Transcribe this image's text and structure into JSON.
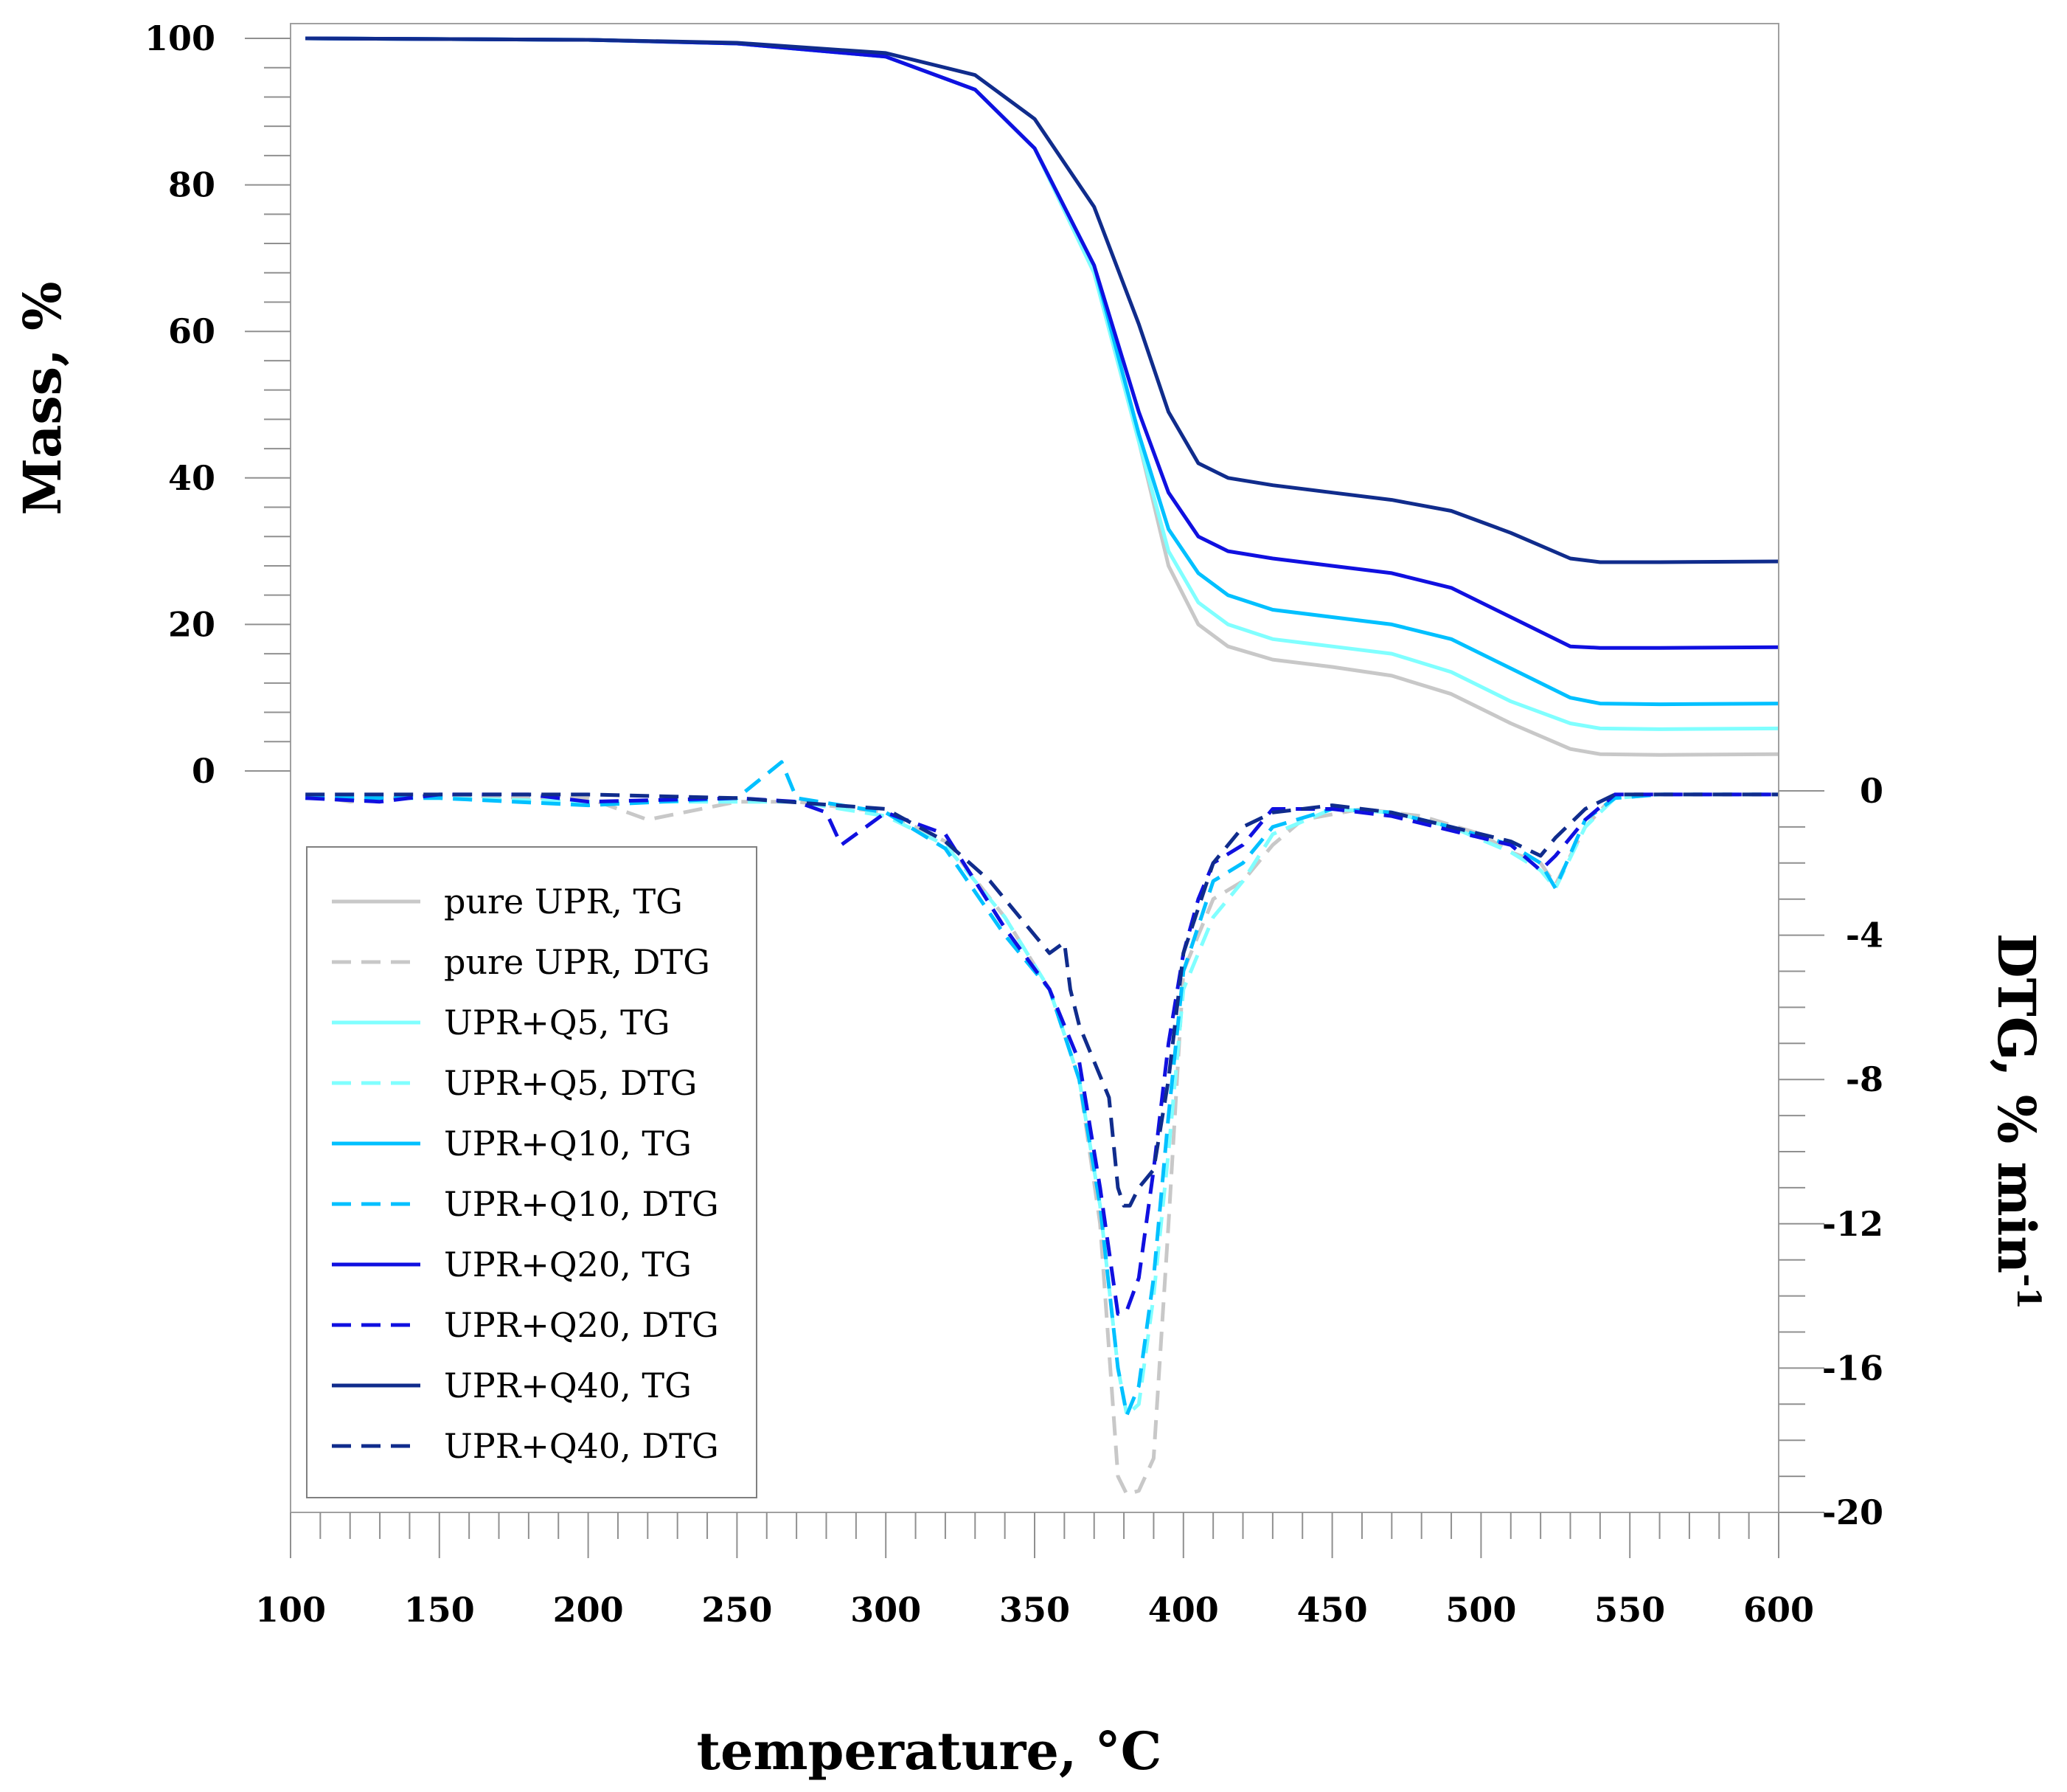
{
  "chart_data": {
    "type": "line",
    "title": "",
    "xlabel": "temperature, °C",
    "ylabel": "Mass, %",
    "y2label": "DTG, % min",
    "y2label_sup": "-1",
    "xlim": [
      100,
      600
    ],
    "ylim_left_visible": [
      0,
      100
    ],
    "ylim_right_visible": [
      -20,
      0
    ],
    "x_ticks": [
      100,
      150,
      200,
      250,
      300,
      350,
      400,
      450,
      500,
      550,
      600
    ],
    "y_ticks": [
      0,
      20,
      40,
      60,
      80,
      100
    ],
    "y2_ticks": [
      0,
      -4,
      -8,
      -12,
      -16,
      -20
    ],
    "legend_position": "lower-left",
    "series": [
      {
        "name": "pure UPR, TG",
        "axis": "left",
        "style": "solid",
        "color": "#c8c8c8",
        "x": [
          105,
          200,
          250,
          300,
          330,
          350,
          370,
          385,
          395,
          405,
          415,
          430,
          450,
          470,
          490,
          510,
          530,
          540,
          560,
          600
        ],
        "values": [
          100,
          99.8,
          99.3,
          97.5,
          93,
          85,
          68,
          45,
          28,
          20,
          17,
          15.2,
          14.2,
          13,
          10.5,
          6.5,
          3,
          2.3,
          2.2,
          2.3
        ]
      },
      {
        "name": "pure UPR, DTG",
        "axis": "right",
        "style": "dashed",
        "color": "#c8c8c8",
        "x": [
          105,
          120,
          150,
          180,
          200,
          220,
          250,
          270,
          300,
          320,
          340,
          355,
          365,
          372,
          378,
          381,
          385,
          390,
          395,
          400,
          410,
          420,
          430,
          440,
          460,
          480,
          500,
          510,
          520,
          525,
          535,
          545,
          560,
          600
        ],
        "values": [
          -0.1,
          -0.3,
          -0.1,
          -0.2,
          -0.2,
          -0.8,
          -0.3,
          -0.3,
          -0.6,
          -1.4,
          -3.5,
          -5.5,
          -8,
          -12,
          -19,
          -19.5,
          -19.4,
          -18.5,
          -12,
          -5,
          -3,
          -2.5,
          -1.5,
          -0.8,
          -0.5,
          -0.7,
          -1.2,
          -1.7,
          -2,
          -2.6,
          -1,
          -0.1,
          -0.1,
          -0.1
        ]
      },
      {
        "name": "UPR+Q5, TG",
        "axis": "left",
        "style": "solid",
        "color": "#80ffff",
        "x": [
          105,
          200,
          250,
          300,
          330,
          350,
          370,
          385,
          395,
          405,
          415,
          430,
          450,
          470,
          490,
          510,
          530,
          540,
          560,
          600
        ],
        "values": [
          100,
          99.8,
          99.3,
          97.5,
          93,
          85,
          68,
          45,
          30,
          23,
          20,
          18,
          17,
          16,
          13.5,
          9.5,
          6.5,
          5.8,
          5.7,
          5.8
        ]
      },
      {
        "name": "UPR+Q5, DTG",
        "axis": "right",
        "style": "dashed",
        "color": "#80ffff",
        "x": [
          105,
          150,
          200,
          250,
          270,
          300,
          320,
          340,
          355,
          365,
          372,
          378,
          381,
          385,
          390,
          395,
          400,
          410,
          420,
          430,
          450,
          470,
          490,
          510,
          520,
          525,
          535,
          545,
          560,
          600
        ],
        "values": [
          -0.2,
          -0.2,
          -0.3,
          -0.3,
          -0.3,
          -0.7,
          -1.5,
          -3.5,
          -5.5,
          -8,
          -11.5,
          -16,
          -17.3,
          -17,
          -14,
          -10,
          -5.5,
          -3.5,
          -2.5,
          -1.2,
          -0.5,
          -0.6,
          -1,
          -1.7,
          -2.2,
          -2.7,
          -1,
          -0.2,
          -0.1,
          -0.1
        ]
      },
      {
        "name": "UPR+Q10, TG",
        "axis": "left",
        "style": "solid",
        "color": "#00c0ff",
        "x": [
          105,
          200,
          250,
          300,
          330,
          350,
          370,
          385,
          395,
          405,
          415,
          430,
          450,
          470,
          490,
          510,
          530,
          540,
          560,
          600
        ],
        "values": [
          100,
          99.8,
          99.3,
          97.5,
          93,
          85,
          69,
          46,
          33,
          27,
          24,
          22,
          21,
          20,
          18,
          14,
          10,
          9.2,
          9.1,
          9.2
        ]
      },
      {
        "name": "UPR+Q10, DTG",
        "axis": "right",
        "style": "dashed",
        "color": "#00c0ff",
        "x": [
          105,
          150,
          200,
          250,
          265,
          270,
          300,
          320,
          340,
          355,
          365,
          372,
          378,
          381,
          385,
          390,
          395,
          400,
          410,
          420,
          430,
          450,
          470,
          490,
          510,
          520,
          525,
          535,
          545,
          560,
          600
        ],
        "values": [
          -0.2,
          -0.2,
          -0.4,
          -0.2,
          0.8,
          -0.2,
          -0.6,
          -1.6,
          -4,
          -5.5,
          -8,
          -11.5,
          -16,
          -17.3,
          -16.5,
          -13.5,
          -9,
          -5,
          -2.5,
          -2,
          -1,
          -0.5,
          -0.6,
          -1,
          -1.5,
          -2,
          -2.7,
          -0.8,
          -0.2,
          -0.1,
          -0.1
        ]
      },
      {
        "name": "UPR+Q20, TG",
        "axis": "left",
        "style": "solid",
        "color": "#1010e0",
        "x": [
          105,
          200,
          250,
          300,
          330,
          350,
          370,
          385,
          395,
          405,
          415,
          430,
          450,
          470,
          490,
          510,
          530,
          540,
          560,
          600
        ],
        "values": [
          100,
          99.8,
          99.3,
          97.5,
          93,
          85,
          69,
          49,
          38,
          32,
          30,
          29,
          28,
          27,
          25,
          21,
          17,
          16.8,
          16.8,
          16.9
        ]
      },
      {
        "name": "UPR+Q20, DTG",
        "axis": "right",
        "style": "dashed",
        "color": "#1010e0",
        "x": [
          105,
          130,
          150,
          180,
          200,
          250,
          270,
          280,
          285,
          300,
          320,
          340,
          355,
          365,
          372,
          378,
          381,
          385,
          390,
          395,
          400,
          405,
          410,
          420,
          430,
          450,
          470,
          490,
          510,
          520,
          525,
          535,
          545,
          560,
          600
        ],
        "values": [
          -0.2,
          -0.3,
          -0.1,
          -0.1,
          -0.3,
          -0.2,
          -0.3,
          -0.6,
          -1.5,
          -0.6,
          -1.2,
          -3.8,
          -5.5,
          -7.5,
          -11,
          -14.5,
          -14.4,
          -13.5,
          -10.5,
          -7,
          -4.5,
          -3,
          -2,
          -1.5,
          -0.5,
          -0.5,
          -0.7,
          -1.1,
          -1.5,
          -2.2,
          -1.8,
          -0.8,
          -0.1,
          -0.1,
          -0.1
        ]
      },
      {
        "name": "UPR+Q40, TG",
        "axis": "left",
        "style": "solid",
        "color": "#102c8c",
        "x": [
          105,
          200,
          250,
          300,
          330,
          350,
          370,
          385,
          395,
          405,
          415,
          430,
          450,
          470,
          490,
          510,
          530,
          540,
          560,
          600
        ],
        "values": [
          100,
          99.8,
          99.4,
          98,
          95,
          89,
          77,
          61,
          49,
          42,
          40,
          39,
          38,
          37,
          35.5,
          32.5,
          29,
          28.5,
          28.5,
          28.6
        ]
      },
      {
        "name": "UPR+Q40, DTG",
        "axis": "right",
        "style": "dashed",
        "color": "#102c8c",
        "x": [
          105,
          150,
          200,
          250,
          300,
          320,
          335,
          345,
          355,
          360,
          362,
          365,
          370,
          375,
          378,
          380,
          382,
          385,
          390,
          395,
          400,
          410,
          420,
          430,
          450,
          470,
          490,
          510,
          520,
          525,
          535,
          545,
          560,
          600
        ],
        "values": [
          -0.1,
          -0.1,
          -0.1,
          -0.2,
          -0.5,
          -1.4,
          -2.5,
          -3.5,
          -4.5,
          -4.2,
          -5.5,
          -6.5,
          -7.5,
          -8.5,
          -11,
          -11.5,
          -11.5,
          -11,
          -10.5,
          -8,
          -4.5,
          -2,
          -1,
          -0.6,
          -0.4,
          -0.6,
          -1,
          -1.4,
          -1.8,
          -1.3,
          -0.5,
          -0.1,
          -0.1,
          -0.1
        ]
      }
    ]
  }
}
